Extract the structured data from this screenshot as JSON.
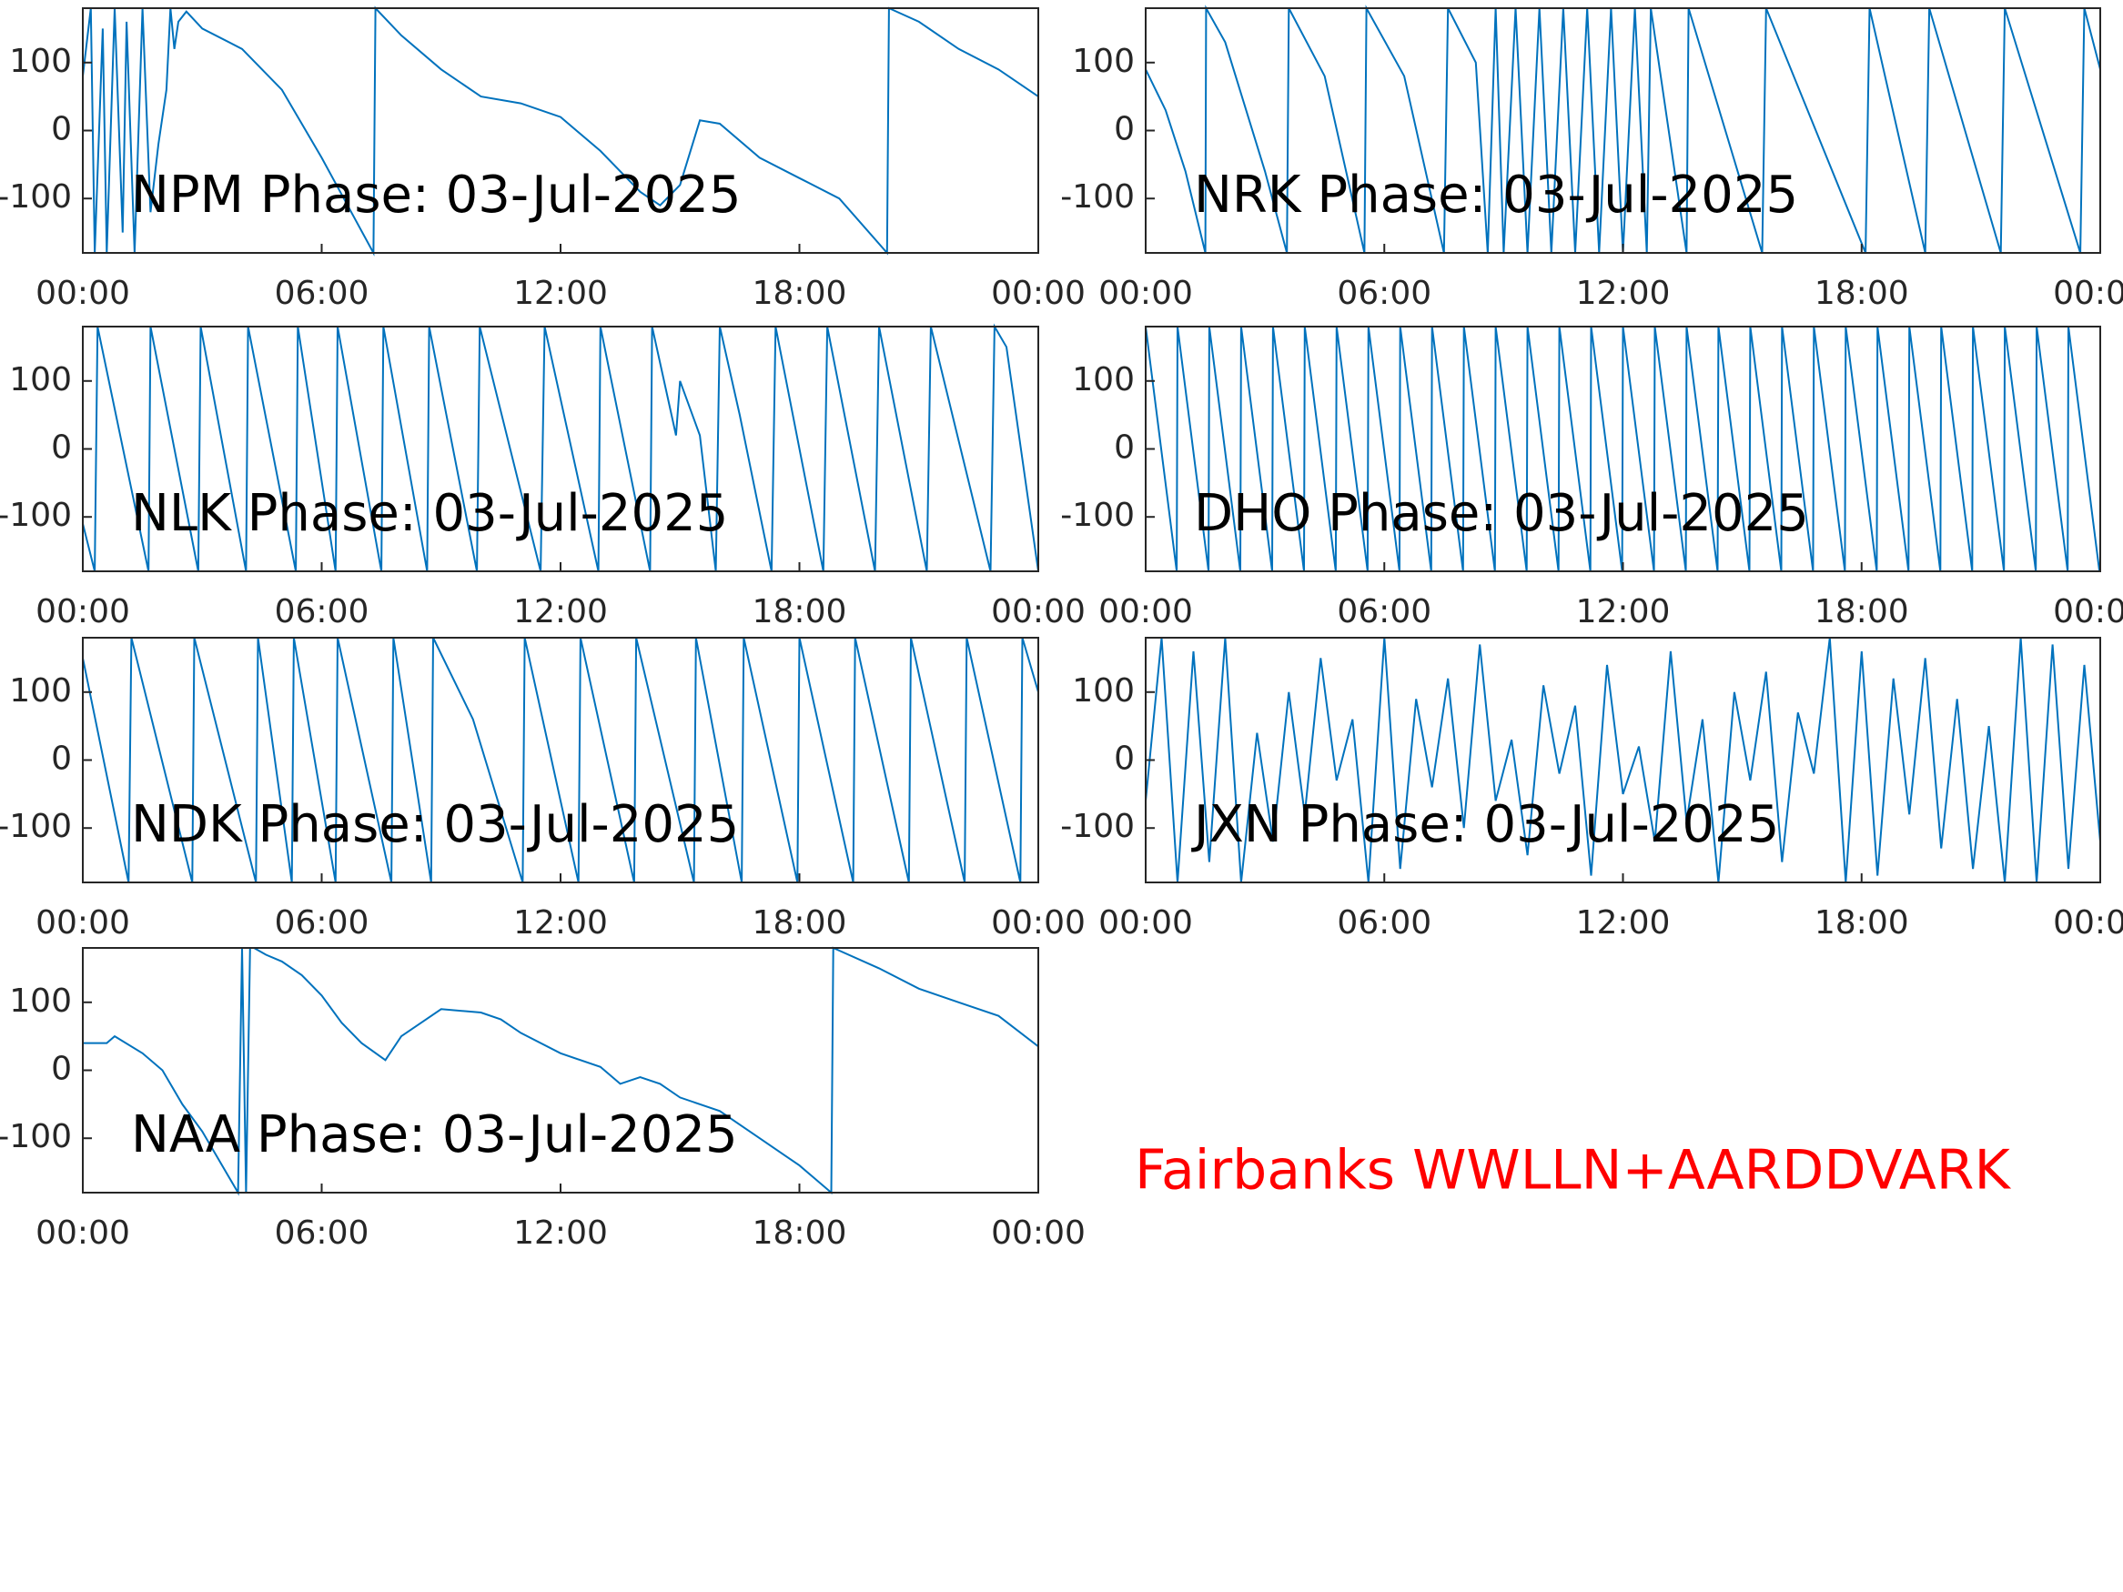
{
  "chart_data": [
    {
      "type": "line",
      "title": "NPM Phase: 03-Jul-2025",
      "color": "#0072bd",
      "x": [
        0,
        0.2,
        0.3,
        0.5,
        0.6,
        0.8,
        1,
        1.1,
        1.3,
        1.5,
        1.7,
        1.9,
        2.1,
        2.2,
        2.3,
        2.4,
        2.6,
        3,
        4,
        5,
        6,
        7.3,
        7.35,
        8,
        9,
        10,
        11,
        12,
        13,
        14,
        14.5,
        15,
        15.5,
        16,
        17,
        18,
        19,
        20.2,
        20.25,
        21,
        22,
        23,
        24
      ],
      "values": [
        80,
        180,
        -180,
        150,
        -180,
        180,
        -150,
        160,
        -180,
        180,
        -120,
        -20,
        60,
        180,
        120,
        160,
        175,
        150,
        120,
        60,
        -40,
        -180,
        180,
        140,
        90,
        50,
        40,
        20,
        -30,
        -90,
        -110,
        -80,
        15,
        10,
        -40,
        -70,
        -100,
        -180,
        180,
        160,
        120,
        90,
        50
      ],
      "xlim": [
        0,
        24
      ],
      "xticks": [
        {
          "value": 0,
          "label": "00:00"
        },
        {
          "value": 6,
          "label": "06:00"
        },
        {
          "value": 12,
          "label": "12:00"
        },
        {
          "value": 18,
          "label": "18:00"
        },
        {
          "value": 24,
          "label": "00:00"
        }
      ],
      "ylim": [
        -180,
        180
      ],
      "yticks": [
        -100,
        0,
        100
      ]
    },
    {
      "type": "line",
      "title": "NRK Phase: 03-Jul-2025",
      "color": "#0072bd",
      "x": [
        0,
        0.5,
        1,
        1.5,
        1.52,
        2,
        3,
        3.55,
        3.6,
        4.5,
        5.5,
        5.55,
        6.5,
        7.5,
        7.6,
        8.3,
        8.6,
        8.8,
        9,
        9.3,
        9.6,
        9.9,
        10.2,
        10.5,
        10.8,
        11.1,
        11.4,
        11.7,
        12,
        12.3,
        12.6,
        12.7,
        13.6,
        13.65,
        15.5,
        15.6,
        18.1,
        18.2,
        19.6,
        19.7,
        21.5,
        21.6,
        23.5,
        23.6,
        24
      ],
      "values": [
        90,
        30,
        -60,
        -180,
        180,
        130,
        -60,
        -180,
        180,
        80,
        -180,
        180,
        80,
        -180,
        180,
        100,
        -180,
        180,
        -180,
        180,
        -180,
        180,
        -180,
        180,
        -180,
        180,
        -180,
        180,
        -180,
        180,
        -180,
        180,
        -180,
        180,
        -180,
        180,
        -180,
        180,
        -180,
        180,
        -180,
        180,
        -180,
        180,
        90
      ],
      "xlim": [
        0,
        24
      ],
      "xticks": [
        {
          "value": 0,
          "label": "00:00"
        },
        {
          "value": 6,
          "label": "06:00"
        },
        {
          "value": 12,
          "label": "12:00"
        },
        {
          "value": 18,
          "label": "18:00"
        },
        {
          "value": 24,
          "label": "00:00"
        }
      ],
      "ylim": [
        -180,
        180
      ],
      "yticks": [
        -100,
        0,
        100
      ]
    },
    {
      "type": "line",
      "title": "NLK Phase: 03-Jul-2025",
      "color": "#0072bd",
      "x": [
        0,
        0.3,
        0.37,
        1.65,
        1.7,
        2.9,
        2.96,
        4.1,
        4.15,
        5.35,
        5.4,
        6.35,
        6.4,
        7.5,
        7.55,
        8.65,
        8.7,
        9.9,
        9.97,
        11.5,
        11.6,
        12.95,
        13,
        14.25,
        14.3,
        14.9,
        15,
        15.5,
        15.9,
        16,
        16.5,
        17.3,
        17.4,
        18.6,
        18.7,
        19.9,
        20,
        21.2,
        21.3,
        22.8,
        22.9,
        23.2,
        24
      ],
      "values": [
        -110,
        -180,
        180,
        -180,
        180,
        -180,
        180,
        -180,
        180,
        -180,
        180,
        -180,
        180,
        -180,
        180,
        -180,
        180,
        -180,
        180,
        -180,
        180,
        -180,
        180,
        -180,
        180,
        20,
        100,
        20,
        -180,
        180,
        50,
        -180,
        180,
        -180,
        180,
        -180,
        180,
        -180,
        180,
        -180,
        180,
        150,
        -180
      ],
      "xlim": [
        0,
        24
      ],
      "xticks": [
        {
          "value": 0,
          "label": "00:00"
        },
        {
          "value": 6,
          "label": "06:00"
        },
        {
          "value": 12,
          "label": "12:00"
        },
        {
          "value": 18,
          "label": "18:00"
        },
        {
          "value": 24,
          "label": "00:00"
        }
      ],
      "ylim": [
        -180,
        180
      ],
      "yticks": [
        -100,
        0,
        100
      ]
    },
    {
      "type": "line",
      "title": "DHO Phase: 03-Jul-2025",
      "color": "#0072bd",
      "x": [
        0,
        0.78,
        0.8,
        1.58,
        1.6,
        2.38,
        2.4,
        3.18,
        3.2,
        3.98,
        4,
        4.78,
        4.8,
        5.58,
        5.6,
        6.38,
        6.4,
        7.18,
        7.2,
        7.98,
        8,
        8.78,
        8.8,
        9.58,
        9.6,
        10.38,
        10.4,
        11.18,
        11.2,
        11.98,
        12,
        12.78,
        12.8,
        13.58,
        13.6,
        14.38,
        14.4,
        15.18,
        15.2,
        15.98,
        16,
        16.78,
        16.8,
        17.58,
        17.6,
        18.38,
        18.4,
        19.18,
        19.2,
        19.98,
        20,
        20.78,
        20.8,
        21.58,
        21.6,
        22.38,
        22.4,
        23.18,
        23.2,
        23.98
      ],
      "values": [
        180,
        -180,
        180,
        -180,
        180,
        -180,
        180,
        -180,
        180,
        -180,
        180,
        -180,
        180,
        -180,
        180,
        -180,
        180,
        -180,
        180,
        -180,
        180,
        -180,
        180,
        -180,
        180,
        -180,
        180,
        -180,
        180,
        -180,
        180,
        -180,
        180,
        -180,
        180,
        -180,
        180,
        -180,
        180,
        -180,
        180,
        -180,
        180,
        -180,
        180,
        -180,
        180,
        -180,
        180,
        -180,
        180,
        -180,
        180,
        -180,
        180,
        -180,
        180,
        -180,
        180,
        -180
      ],
      "xlim": [
        0,
        24
      ],
      "xticks": [
        {
          "value": 0,
          "label": "00:00"
        },
        {
          "value": 6,
          "label": "06:00"
        },
        {
          "value": 12,
          "label": "12:00"
        },
        {
          "value": 18,
          "label": "18:00"
        },
        {
          "value": 24,
          "label": "00:00"
        }
      ],
      "ylim": [
        -180,
        180
      ],
      "yticks": [
        -100,
        0,
        100
      ]
    },
    {
      "type": "line",
      "title": "NDK Phase: 03-Jul-2025",
      "color": "#0072bd",
      "x": [
        0,
        1.15,
        1.22,
        2.75,
        2.8,
        4.35,
        4.4,
        5.25,
        5.3,
        6.35,
        6.4,
        7.75,
        7.8,
        8.75,
        8.8,
        9.8,
        11.05,
        11.1,
        12.45,
        12.5,
        13.85,
        13.9,
        15.35,
        15.4,
        16.55,
        16.6,
        17.95,
        18,
        19.35,
        19.4,
        20.75,
        20.8,
        22.15,
        22.2,
        23.55,
        23.6,
        24
      ],
      "values": [
        150,
        -180,
        180,
        -180,
        180,
        -180,
        180,
        -180,
        180,
        -180,
        180,
        -180,
        180,
        -180,
        180,
        60,
        -180,
        180,
        -180,
        180,
        -180,
        180,
        -180,
        180,
        -180,
        180,
        -180,
        180,
        -180,
        180,
        -180,
        180,
        -180,
        180,
        -180,
        180,
        100
      ],
      "xlim": [
        0,
        24
      ],
      "xticks": [
        {
          "value": 0,
          "label": "00:00"
        },
        {
          "value": 6,
          "label": "06:00"
        },
        {
          "value": 12,
          "label": "12:00"
        },
        {
          "value": 18,
          "label": "18:00"
        },
        {
          "value": 24,
          "label": "00:00"
        }
      ],
      "ylim": [
        -180,
        180
      ],
      "yticks": [
        -100,
        0,
        100
      ]
    },
    {
      "type": "line",
      "title": "JXN Phase: 03-Jul-2025",
      "color": "#0072bd",
      "x": [
        0,
        0.4,
        0.8,
        1.2,
        1.6,
        2,
        2.4,
        2.8,
        3.2,
        3.6,
        4,
        4.4,
        4.8,
        5.2,
        5.6,
        6,
        6.4,
        6.8,
        7.2,
        7.6,
        8,
        8.4,
        8.8,
        9.2,
        9.6,
        10,
        10.4,
        10.8,
        11.2,
        11.6,
        12,
        12.4,
        12.8,
        13.2,
        13.6,
        14,
        14.4,
        14.8,
        15.2,
        15.6,
        16,
        16.4,
        16.8,
        17.2,
        17.6,
        18,
        18.4,
        18.8,
        19.2,
        19.6,
        20,
        20.4,
        20.8,
        21.2,
        21.6,
        22,
        22.4,
        22.8,
        23.2,
        23.6,
        24
      ],
      "values": [
        -60,
        180,
        -180,
        160,
        -150,
        180,
        -180,
        40,
        -120,
        100,
        -80,
        150,
        -30,
        60,
        -180,
        180,
        -160,
        90,
        -40,
        120,
        -100,
        170,
        -60,
        30,
        -140,
        110,
        -20,
        80,
        -170,
        140,
        -50,
        20,
        -120,
        160,
        -90,
        60,
        -180,
        100,
        -30,
        130,
        -150,
        70,
        -20,
        180,
        -180,
        160,
        -170,
        120,
        -80,
        150,
        -130,
        90,
        -160,
        50,
        -180,
        180,
        -180,
        170,
        -160,
        140,
        -120
      ],
      "xlim": [
        0,
        24
      ],
      "xticks": [
        {
          "value": 0,
          "label": "00:00"
        },
        {
          "value": 6,
          "label": "06:00"
        },
        {
          "value": 12,
          "label": "12:00"
        },
        {
          "value": 18,
          "label": "18:00"
        },
        {
          "value": 24,
          "label": "00:00"
        }
      ],
      "ylim": [
        -180,
        180
      ],
      "yticks": [
        -100,
        0,
        100
      ]
    },
    {
      "type": "line",
      "title": "NAA Phase: 03-Jul-2025",
      "color": "#0072bd",
      "x": [
        0,
        0.6,
        0.8,
        1.5,
        2,
        2.5,
        3,
        3.5,
        3.9,
        4,
        4.1,
        4.2,
        4.3,
        4.6,
        5,
        5.5,
        6,
        6.5,
        7,
        7.6,
        8,
        8.5,
        9,
        10,
        10.5,
        11,
        12,
        13,
        13.5,
        14,
        14.5,
        15,
        16,
        17,
        18,
        18.8,
        18.85,
        20,
        21,
        22,
        23,
        24
      ],
      "values": [
        40,
        40,
        50,
        25,
        0,
        -50,
        -90,
        -140,
        -180,
        180,
        -180,
        180,
        180,
        170,
        160,
        140,
        110,
        70,
        40,
        15,
        50,
        70,
        90,
        85,
        75,
        55,
        25,
        5,
        -20,
        -10,
        -20,
        -40,
        -60,
        -100,
        -140,
        -180,
        180,
        150,
        120,
        100,
        80,
        35
      ],
      "xlim": [
        0,
        24
      ],
      "xticks": [
        {
          "value": 0,
          "label": "00:00"
        },
        {
          "value": 6,
          "label": "06:00"
        },
        {
          "value": 12,
          "label": "12:00"
        },
        {
          "value": 18,
          "label": "18:00"
        },
        {
          "value": 24,
          "label": "00:00"
        }
      ],
      "ylim": [
        -180,
        180
      ],
      "yticks": [
        -100,
        0,
        100
      ]
    }
  ],
  "figure_label": "Fairbanks WWLLN+AARDDVARK"
}
